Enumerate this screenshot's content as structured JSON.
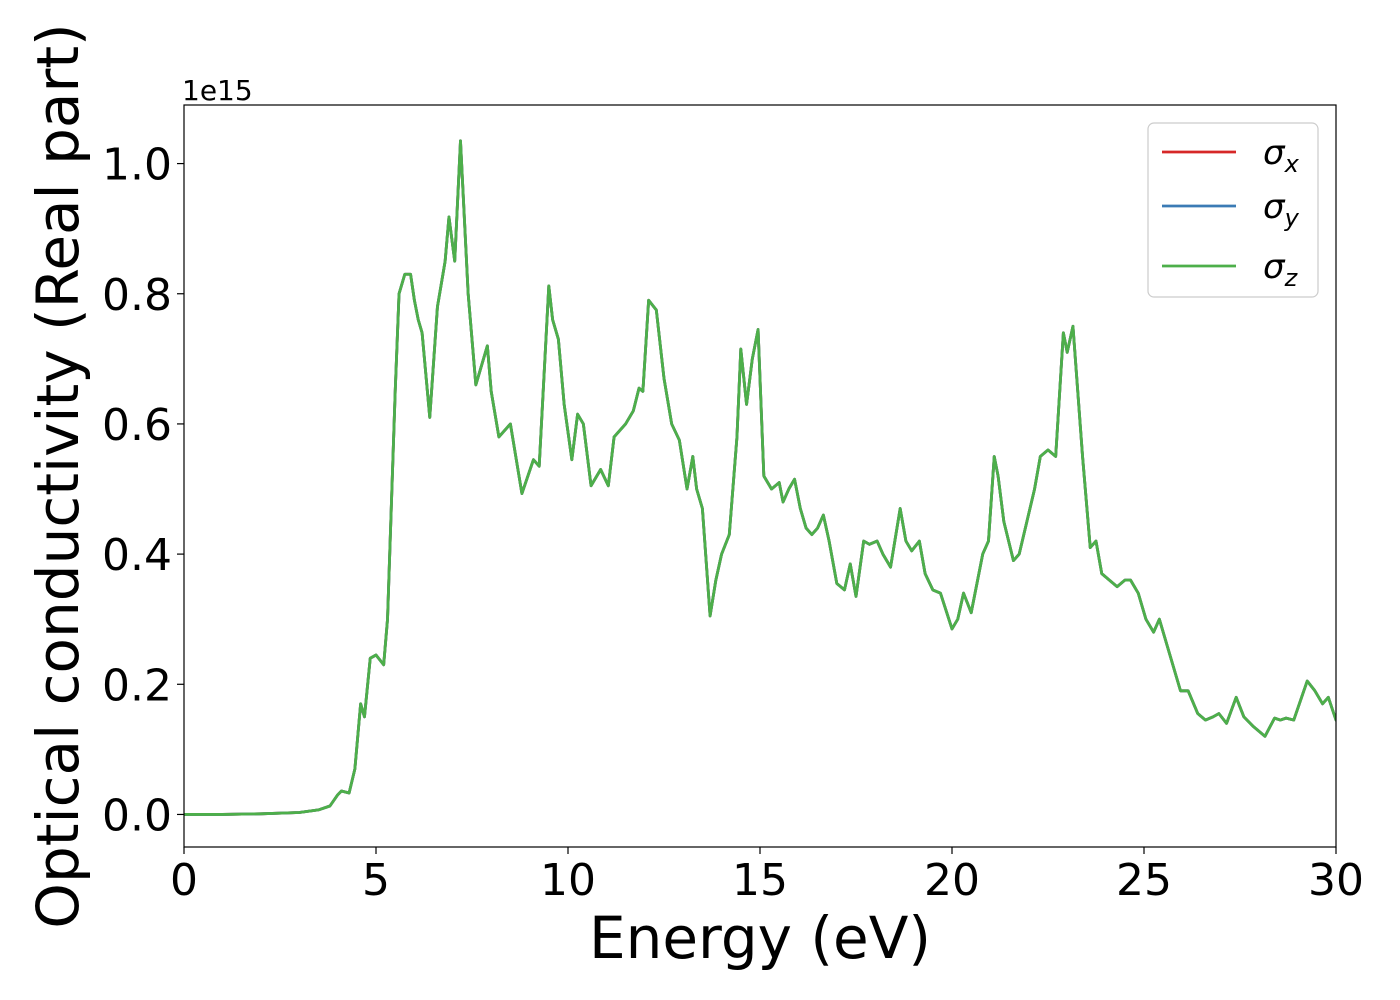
{
  "chart_data": {
    "type": "line",
    "title": "",
    "xlabel": "Energy (eV)",
    "ylabel": "Optical conductivity (Real part)",
    "y_offset_label": "1e15",
    "xlim": [
      0,
      30
    ],
    "ylim": [
      -0.05,
      1.09
    ],
    "x_ticks": [
      0,
      5,
      10,
      15,
      20,
      25,
      30
    ],
    "x_tick_labels": [
      "0",
      "5",
      "10",
      "15",
      "20",
      "25",
      "30"
    ],
    "y_ticks": [
      0.0,
      0.2,
      0.4,
      0.6,
      0.8,
      1.0
    ],
    "y_tick_labels": [
      "0.0",
      "0.2",
      "0.4",
      "0.6",
      "0.8",
      "1.0"
    ],
    "grid": false,
    "legend_position": "top-right",
    "x": [
      0,
      1,
      2,
      3,
      3.5,
      3.8,
      4.0,
      4.1,
      4.3,
      4.45,
      4.6,
      4.7,
      4.85,
      5.0,
      5.2,
      5.3,
      5.5,
      5.6,
      5.75,
      5.9,
      6.0,
      6.1,
      6.2,
      6.4,
      6.6,
      6.8,
      6.9,
      7.05,
      7.2,
      7.4,
      7.6,
      7.9,
      8.0,
      8.2,
      8.5,
      8.8,
      9.1,
      9.25,
      9.5,
      9.6,
      9.75,
      9.9,
      10.1,
      10.25,
      10.4,
      10.6,
      10.85,
      11.05,
      11.2,
      11.5,
      11.7,
      11.85,
      11.95,
      12.1,
      12.3,
      12.5,
      12.7,
      12.9,
      13.1,
      13.25,
      13.35,
      13.5,
      13.7,
      13.85,
      14.0,
      14.2,
      14.4,
      14.5,
      14.65,
      14.8,
      14.95,
      15.1,
      15.3,
      15.5,
      15.6,
      15.75,
      15.9,
      16.05,
      16.2,
      16.35,
      16.5,
      16.65,
      16.8,
      17.0,
      17.2,
      17.35,
      17.5,
      17.7,
      17.85,
      18.05,
      18.2,
      18.4,
      18.65,
      18.8,
      18.95,
      19.15,
      19.3,
      19.5,
      19.7,
      20.0,
      20.15,
      20.3,
      20.5,
      20.8,
      20.95,
      21.1,
      21.2,
      21.35,
      21.6,
      21.75,
      21.95,
      22.15,
      22.3,
      22.5,
      22.7,
      22.9,
      23.0,
      23.15,
      23.4,
      23.6,
      23.75,
      23.9,
      24.1,
      24.3,
      24.5,
      24.65,
      24.85,
      25.05,
      25.25,
      25.4,
      25.6,
      25.75,
      25.95,
      26.15,
      26.4,
      26.6,
      26.8,
      26.95,
      27.15,
      27.4,
      27.6,
      27.85,
      28.15,
      28.4,
      28.55,
      28.7,
      28.9,
      29.25,
      29.45,
      29.65,
      29.8,
      30.0
    ],
    "series": [
      {
        "name": "σx",
        "name_base": "σ",
        "name_sub": "x",
        "color": "#d62728",
        "values": [
          0.0,
          0.0,
          0.001,
          0.003,
          0.007,
          0.013,
          0.03,
          0.036,
          0.033,
          0.07,
          0.17,
          0.15,
          0.24,
          0.245,
          0.23,
          0.3,
          0.65,
          0.8,
          0.83,
          0.83,
          0.79,
          0.76,
          0.74,
          0.61,
          0.78,
          0.85,
          0.918,
          0.85,
          1.035,
          0.8,
          0.66,
          0.72,
          0.65,
          0.58,
          0.6,
          0.493,
          0.545,
          0.535,
          0.812,
          0.76,
          0.73,
          0.63,
          0.545,
          0.615,
          0.6,
          0.505,
          0.53,
          0.505,
          0.58,
          0.6,
          0.62,
          0.655,
          0.65,
          0.79,
          0.775,
          0.67,
          0.6,
          0.575,
          0.5,
          0.55,
          0.5,
          0.47,
          0.305,
          0.36,
          0.4,
          0.43,
          0.58,
          0.715,
          0.63,
          0.7,
          0.745,
          0.52,
          0.5,
          0.51,
          0.48,
          0.5,
          0.515,
          0.47,
          0.44,
          0.43,
          0.44,
          0.46,
          0.42,
          0.355,
          0.345,
          0.385,
          0.335,
          0.42,
          0.415,
          0.42,
          0.4,
          0.38,
          0.47,
          0.42,
          0.405,
          0.42,
          0.37,
          0.345,
          0.34,
          0.285,
          0.3,
          0.34,
          0.31,
          0.4,
          0.42,
          0.55,
          0.52,
          0.45,
          0.39,
          0.4,
          0.45,
          0.5,
          0.55,
          0.56,
          0.55,
          0.74,
          0.71,
          0.75,
          0.55,
          0.41,
          0.42,
          0.37,
          0.36,
          0.35,
          0.36,
          0.36,
          0.34,
          0.3,
          0.28,
          0.3,
          0.26,
          0.23,
          0.19,
          0.19,
          0.155,
          0.145,
          0.15,
          0.155,
          0.14,
          0.18,
          0.15,
          0.135,
          0.12,
          0.148,
          0.145,
          0.148,
          0.145,
          0.205,
          0.19,
          0.17,
          0.18,
          0.145
        ]
      },
      {
        "name": "σy",
        "name_base": "σ",
        "name_sub": "y",
        "color": "#3b7bb5",
        "values": [
          0.0,
          0.0,
          0.001,
          0.003,
          0.007,
          0.013,
          0.03,
          0.036,
          0.033,
          0.07,
          0.17,
          0.15,
          0.24,
          0.245,
          0.23,
          0.3,
          0.65,
          0.8,
          0.83,
          0.83,
          0.79,
          0.76,
          0.74,
          0.61,
          0.78,
          0.85,
          0.918,
          0.85,
          1.035,
          0.8,
          0.66,
          0.72,
          0.65,
          0.58,
          0.6,
          0.493,
          0.545,
          0.535,
          0.812,
          0.76,
          0.73,
          0.63,
          0.545,
          0.615,
          0.6,
          0.505,
          0.53,
          0.505,
          0.58,
          0.6,
          0.62,
          0.655,
          0.65,
          0.79,
          0.775,
          0.67,
          0.6,
          0.575,
          0.5,
          0.55,
          0.5,
          0.47,
          0.305,
          0.36,
          0.4,
          0.43,
          0.58,
          0.715,
          0.63,
          0.7,
          0.745,
          0.52,
          0.5,
          0.51,
          0.48,
          0.5,
          0.515,
          0.47,
          0.44,
          0.43,
          0.44,
          0.46,
          0.42,
          0.355,
          0.345,
          0.385,
          0.335,
          0.42,
          0.415,
          0.42,
          0.4,
          0.38,
          0.47,
          0.42,
          0.405,
          0.42,
          0.37,
          0.345,
          0.34,
          0.285,
          0.3,
          0.34,
          0.31,
          0.4,
          0.42,
          0.55,
          0.52,
          0.45,
          0.39,
          0.4,
          0.45,
          0.5,
          0.55,
          0.56,
          0.55,
          0.74,
          0.71,
          0.75,
          0.55,
          0.41,
          0.42,
          0.37,
          0.36,
          0.35,
          0.36,
          0.36,
          0.34,
          0.3,
          0.28,
          0.3,
          0.26,
          0.23,
          0.19,
          0.19,
          0.155,
          0.145,
          0.15,
          0.155,
          0.14,
          0.18,
          0.15,
          0.135,
          0.12,
          0.148,
          0.145,
          0.148,
          0.145,
          0.205,
          0.19,
          0.17,
          0.18,
          0.145
        ]
      },
      {
        "name": "σz",
        "name_base": "σ",
        "name_sub": "z",
        "color": "#4daf4a",
        "values": [
          0.0,
          0.0,
          0.001,
          0.003,
          0.007,
          0.013,
          0.03,
          0.036,
          0.033,
          0.07,
          0.17,
          0.15,
          0.24,
          0.245,
          0.23,
          0.3,
          0.65,
          0.8,
          0.83,
          0.83,
          0.79,
          0.76,
          0.74,
          0.61,
          0.78,
          0.85,
          0.918,
          0.85,
          1.035,
          0.8,
          0.66,
          0.72,
          0.65,
          0.58,
          0.6,
          0.493,
          0.545,
          0.535,
          0.812,
          0.76,
          0.73,
          0.63,
          0.545,
          0.615,
          0.6,
          0.505,
          0.53,
          0.505,
          0.58,
          0.6,
          0.62,
          0.655,
          0.65,
          0.79,
          0.775,
          0.67,
          0.6,
          0.575,
          0.5,
          0.55,
          0.5,
          0.47,
          0.305,
          0.36,
          0.4,
          0.43,
          0.58,
          0.715,
          0.63,
          0.7,
          0.745,
          0.52,
          0.5,
          0.51,
          0.48,
          0.5,
          0.515,
          0.47,
          0.44,
          0.43,
          0.44,
          0.46,
          0.42,
          0.355,
          0.345,
          0.385,
          0.335,
          0.42,
          0.415,
          0.42,
          0.4,
          0.38,
          0.47,
          0.42,
          0.405,
          0.42,
          0.37,
          0.345,
          0.34,
          0.285,
          0.3,
          0.34,
          0.31,
          0.4,
          0.42,
          0.55,
          0.52,
          0.45,
          0.39,
          0.4,
          0.45,
          0.5,
          0.55,
          0.56,
          0.55,
          0.74,
          0.71,
          0.75,
          0.55,
          0.41,
          0.42,
          0.37,
          0.36,
          0.35,
          0.36,
          0.36,
          0.34,
          0.3,
          0.28,
          0.3,
          0.26,
          0.23,
          0.19,
          0.19,
          0.155,
          0.145,
          0.15,
          0.155,
          0.14,
          0.18,
          0.15,
          0.135,
          0.12,
          0.148,
          0.145,
          0.148,
          0.145,
          0.205,
          0.19,
          0.17,
          0.18,
          0.145
        ]
      }
    ]
  }
}
